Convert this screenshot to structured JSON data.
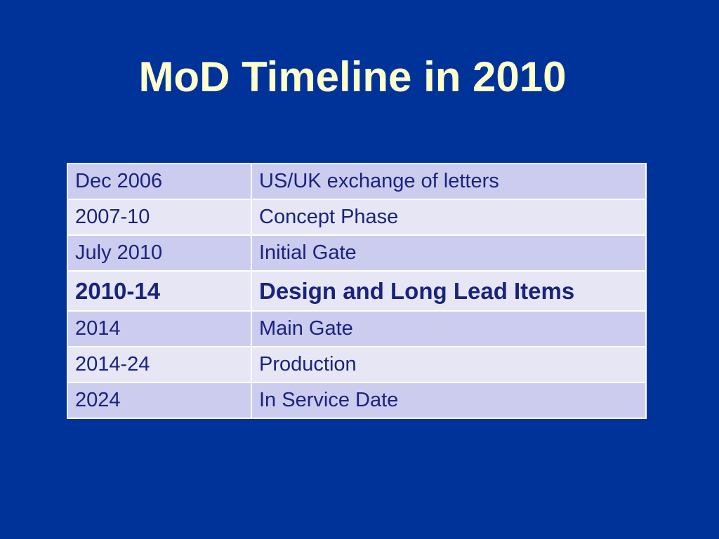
{
  "slide": {
    "title": "MoD Timeline in 2010"
  },
  "timeline": {
    "rows": [
      {
        "date": "Dec 2006",
        "event": "US/UK exchange of letters"
      },
      {
        "date": "2007-10",
        "event": "Concept Phase"
      },
      {
        "date": "July 2010",
        "event": "Initial Gate"
      },
      {
        "date": "2010-14",
        "event": "Design and Long Lead Items"
      },
      {
        "date": "2014",
        "event": "Main Gate"
      },
      {
        "date": "2014-24",
        "event": "Production"
      },
      {
        "date": "2024",
        "event": "In Service Date"
      }
    ]
  },
  "colors": {
    "background": "#003399",
    "title": "#ffffcc",
    "row_dark": "#ccccee",
    "row_light": "#e6e6f5",
    "text": "#1a237e"
  }
}
